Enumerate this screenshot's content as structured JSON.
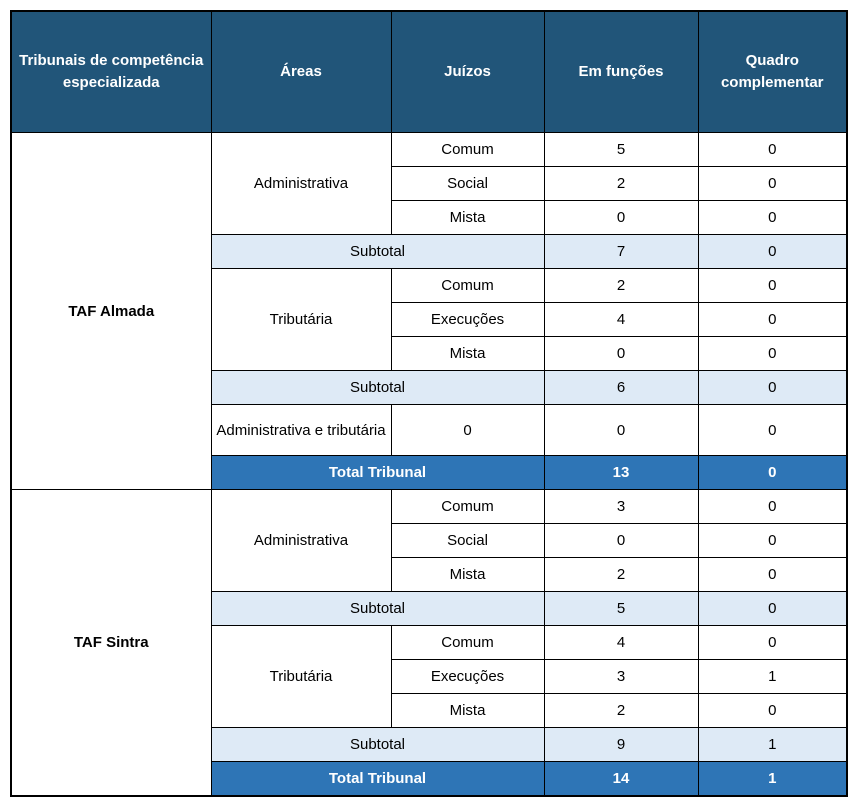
{
  "colors": {
    "header_bg": "#215579",
    "subtotal_bg": "#DEEAF6",
    "total_bg": "#2E75B6",
    "border": "#000000",
    "header_text": "#ffffff",
    "total_text": "#ffffff",
    "body_text": "#000000"
  },
  "header": {
    "columns": [
      "Tribunais de competência especializada",
      "Áreas",
      "Juízos",
      "Em funções",
      "Quadro complementar"
    ]
  },
  "sections": [
    {
      "tribunal": "TAF Almada",
      "groups": [
        {
          "area": "Administrativa",
          "rows": [
            {
              "juizo": "Comum",
              "em_funcoes": "5",
              "quadro": "0"
            },
            {
              "juizo": "Social",
              "em_funcoes": "2",
              "quadro": "0"
            },
            {
              "juizo": "Mista",
              "em_funcoes": "0",
              "quadro": "0"
            }
          ],
          "subtotal": {
            "label": "Subtotal",
            "em_funcoes": "7",
            "quadro": "0"
          }
        },
        {
          "area": "Tributária",
          "rows": [
            {
              "juizo": "Comum",
              "em_funcoes": "2",
              "quadro": "0"
            },
            {
              "juizo": "Execuções",
              "em_funcoes": "4",
              "quadro": "0"
            },
            {
              "juizo": "Mista",
              "em_funcoes": "0",
              "quadro": "0"
            }
          ],
          "subtotal": {
            "label": "Subtotal",
            "em_funcoes": "6",
            "quadro": "0"
          }
        }
      ],
      "extra_row": {
        "area": "Administrativa e tributária",
        "juizo": "0",
        "em_funcoes": "0",
        "quadro": "0"
      },
      "total": {
        "label": "Total Tribunal",
        "em_funcoes": "13",
        "quadro": "0"
      }
    },
    {
      "tribunal": "TAF Sintra",
      "groups": [
        {
          "area": "Administrativa",
          "rows": [
            {
              "juizo": "Comum",
              "em_funcoes": "3",
              "quadro": "0"
            },
            {
              "juizo": "Social",
              "em_funcoes": "0",
              "quadro": "0"
            },
            {
              "juizo": "Mista",
              "em_funcoes": "2",
              "quadro": "0"
            }
          ],
          "subtotal": {
            "label": "Subtotal",
            "em_funcoes": "5",
            "quadro": "0"
          }
        },
        {
          "area": "Tributária",
          "rows": [
            {
              "juizo": "Comum",
              "em_funcoes": "4",
              "quadro": "0"
            },
            {
              "juizo": "Execuções",
              "em_funcoes": "3",
              "quadro": "1"
            },
            {
              "juizo": "Mista",
              "em_funcoes": "2",
              "quadro": "0"
            }
          ],
          "subtotal": {
            "label": "Subtotal",
            "em_funcoes": "9",
            "quadro": "1"
          }
        }
      ],
      "total": {
        "label": "Total Tribunal",
        "em_funcoes": "14",
        "quadro": "1"
      }
    }
  ]
}
